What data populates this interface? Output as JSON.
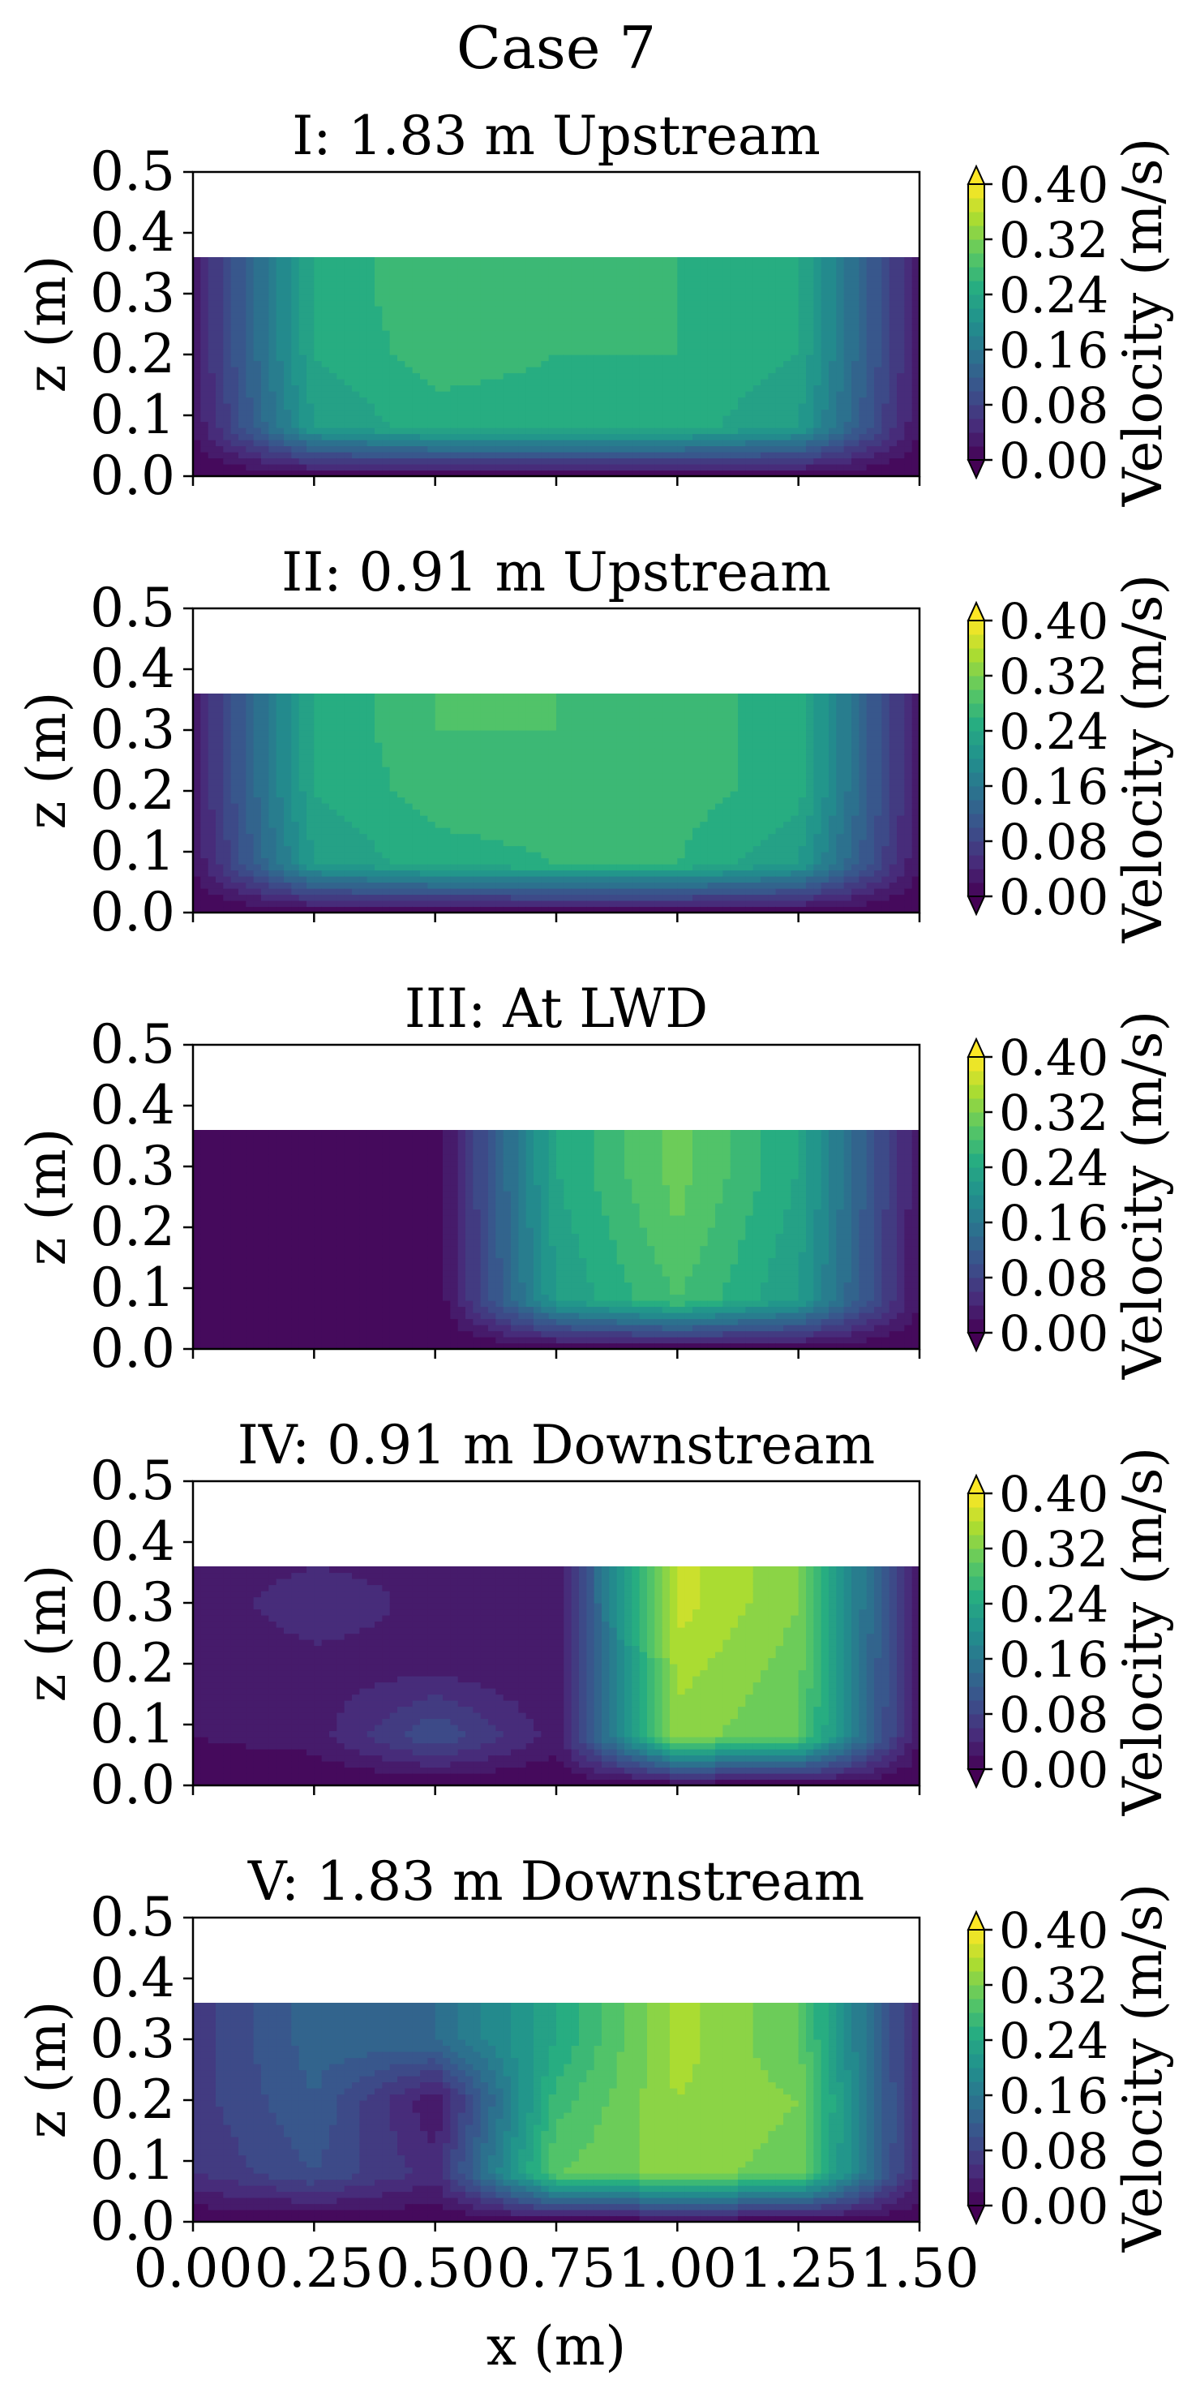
{
  "figure": {
    "title": "Case 7",
    "x_axis_label": "x (m)",
    "y_axis_label": "z (m)",
    "colorbar_label": "Velocity (m/s)",
    "colormap": "viridis"
  },
  "chart_data": {
    "type": "heatmap",
    "plot_style": "filled contour",
    "xlim": [
      0.0,
      1.5
    ],
    "ylim": [
      0.0,
      0.5
    ],
    "x_ticks": [
      "0.00",
      "0.25",
      "0.50",
      "0.75",
      "1.00",
      "1.25",
      "1.50"
    ],
    "y_ticks": [
      "0.0",
      "0.1",
      "0.2",
      "0.3",
      "0.4",
      "0.5"
    ],
    "colorbar_ticks": [
      "0.00",
      "0.08",
      "0.16",
      "0.24",
      "0.32",
      "0.40"
    ],
    "colorbar_range": [
      0.0,
      0.4
    ],
    "colorbar_extend": "both",
    "water_surface_z": 0.36,
    "grid_x": [
      0.0,
      0.25,
      0.5,
      0.75,
      1.0,
      1.25,
      1.5
    ],
    "grid_z": [
      0.0,
      0.08,
      0.2,
      0.3,
      0.36
    ],
    "panels": [
      {
        "title": "I: 1.83 m Upstream",
        "velocity_rows_bottom_to_top": [
          [
            0.0,
            0.0,
            0.0,
            0.0,
            0.0,
            0.0,
            0.0
          ],
          [
            0.02,
            0.22,
            0.25,
            0.25,
            0.25,
            0.22,
            0.02
          ],
          [
            0.03,
            0.24,
            0.27,
            0.26,
            0.26,
            0.24,
            0.03
          ],
          [
            0.03,
            0.24,
            0.28,
            0.27,
            0.26,
            0.24,
            0.03
          ],
          [
            0.03,
            0.24,
            0.28,
            0.27,
            0.26,
            0.24,
            0.03
          ]
        ]
      },
      {
        "title": "II: 0.91 m Upstream",
        "velocity_rows_bottom_to_top": [
          [
            0.0,
            0.0,
            0.0,
            0.0,
            0.0,
            0.0,
            0.0
          ],
          [
            0.02,
            0.22,
            0.25,
            0.26,
            0.26,
            0.22,
            0.02
          ],
          [
            0.03,
            0.24,
            0.27,
            0.27,
            0.27,
            0.25,
            0.03
          ],
          [
            0.03,
            0.24,
            0.28,
            0.28,
            0.27,
            0.25,
            0.03
          ],
          [
            0.03,
            0.24,
            0.28,
            0.28,
            0.27,
            0.25,
            0.03
          ]
        ]
      },
      {
        "title": "III: At LWD",
        "velocity_rows_bottom_to_top": [
          [
            0.0,
            0.0,
            0.0,
            0.0,
            0.0,
            0.0,
            0.0
          ],
          [
            0.0,
            0.0,
            0.0,
            0.22,
            0.28,
            0.22,
            0.02
          ],
          [
            0.0,
            0.0,
            0.0,
            0.23,
            0.3,
            0.23,
            0.02
          ],
          [
            0.0,
            0.0,
            0.0,
            0.24,
            0.31,
            0.24,
            0.02
          ],
          [
            0.0,
            0.0,
            0.0,
            0.24,
            0.31,
            0.24,
            0.02
          ]
        ]
      },
      {
        "title": "IV: 0.91 m Downstream",
        "velocity_rows_bottom_to_top": [
          [
            0.0,
            0.0,
            0.0,
            0.0,
            0.0,
            0.0,
            0.0
          ],
          [
            0.02,
            0.03,
            0.1,
            0.03,
            0.33,
            0.3,
            0.02
          ],
          [
            0.02,
            0.03,
            0.03,
            0.02,
            0.35,
            0.31,
            0.02
          ],
          [
            0.02,
            0.06,
            0.03,
            0.02,
            0.37,
            0.32,
            0.02
          ],
          [
            0.02,
            0.04,
            0.03,
            0.02,
            0.37,
            0.32,
            0.02
          ]
        ]
      },
      {
        "title": "V: 1.83 m Downstream",
        "velocity_rows_bottom_to_top": [
          [
            0.0,
            0.0,
            0.0,
            0.0,
            0.0,
            0.0,
            0.0
          ],
          [
            0.06,
            0.1,
            0.05,
            0.3,
            0.33,
            0.31,
            0.04
          ],
          [
            0.07,
            0.12,
            0.02,
            0.27,
            0.34,
            0.32,
            0.04
          ],
          [
            0.07,
            0.13,
            0.14,
            0.24,
            0.35,
            0.3,
            0.04
          ],
          [
            0.07,
            0.13,
            0.14,
            0.24,
            0.35,
            0.3,
            0.04
          ]
        ]
      }
    ]
  }
}
